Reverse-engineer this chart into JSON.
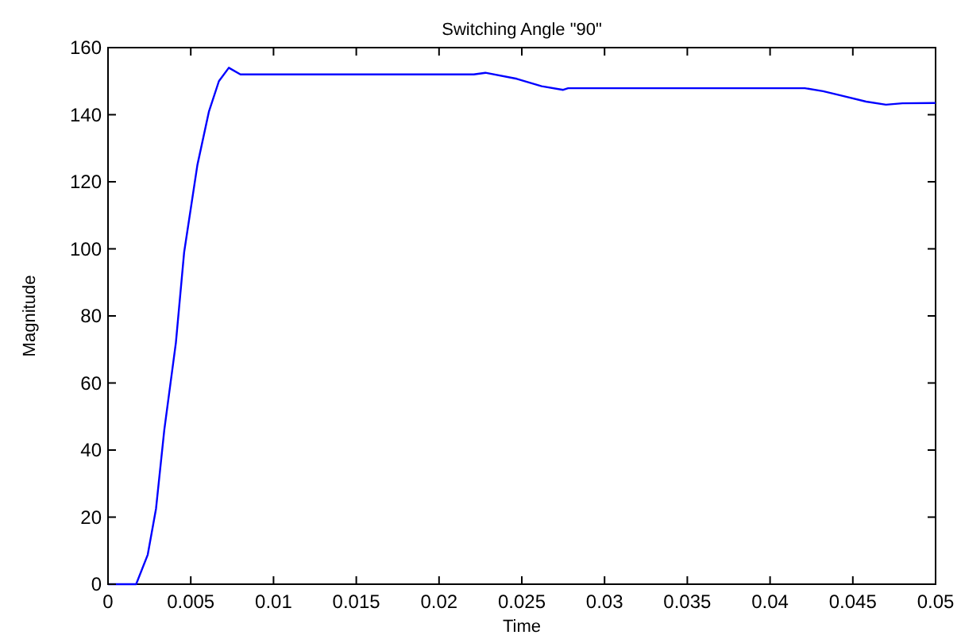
{
  "chart_data": {
    "type": "line",
    "title": "Switching Angle \"90\"",
    "xlabel": "Time",
    "ylabel": "Magnitude",
    "xlim": [
      0,
      0.05
    ],
    "ylim": [
      0,
      160
    ],
    "xticks": [
      0,
      0.005,
      0.01,
      0.015,
      0.02,
      0.025,
      0.03,
      0.035,
      0.04,
      0.045,
      0.05
    ],
    "yticks": [
      0,
      20,
      40,
      60,
      80,
      100,
      120,
      140,
      160
    ],
    "grid": false,
    "line_style": "solid",
    "series": [
      {
        "color": "#0000ff",
        "x": [
          0,
          0.0017,
          0.0024,
          0.0029,
          0.0034,
          0.0041,
          0.0046,
          0.0054,
          0.0061,
          0.0067,
          0.0073,
          0.008,
          0.0221,
          0.0228,
          0.0247,
          0.0262,
          0.0275,
          0.0278,
          0.0421,
          0.0432,
          0.0443,
          0.0458,
          0.047,
          0.048,
          0.05
        ],
        "values": [
          0,
          0,
          8.8,
          22.5,
          46,
          72,
          99,
          125,
          141,
          150,
          154,
          152,
          152,
          152.5,
          150.7,
          148.5,
          147.4,
          147.9,
          147.9,
          147,
          145.7,
          143.9,
          143,
          143.4,
          143.5
        ]
      }
    ]
  }
}
